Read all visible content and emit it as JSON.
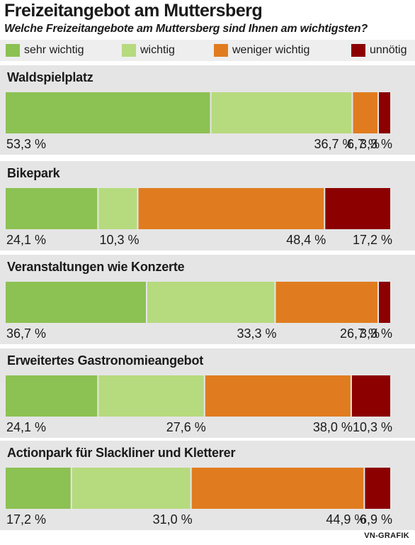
{
  "title": "Freizeitangebot am Muttersberg",
  "subtitle": "Welche Freizeitangebote am Muttersberg sind Ihnen am wichtigsten?",
  "source": "VN-GRAFIK",
  "colors": {
    "sehr_wichtig": "#8cc153",
    "wichtig": "#b6da7e",
    "weniger_wichtig": "#e07c1f",
    "unnoetig": "#8c0000"
  },
  "chart_data": {
    "type": "bar",
    "orientation": "horizontal",
    "stacked": true,
    "normalized": true,
    "legend_position": "top",
    "categories": [
      "Waldspielplatz",
      "Bikepark",
      "Veranstaltungen wie Konzerte",
      "Erweitertes Gastronomieangebot",
      "Actionpark für Slackliner und Kletterer"
    ],
    "series": [
      {
        "name": "sehr wichtig",
        "color": "#8cc153",
        "values": [
          53.3,
          24.1,
          36.7,
          24.1,
          17.2
        ]
      },
      {
        "name": "wichtig",
        "color": "#b6da7e",
        "values": [
          36.7,
          10.3,
          33.3,
          27.6,
          31.0
        ]
      },
      {
        "name": "weniger wichtig",
        "color": "#e07c1f",
        "values": [
          6.7,
          48.4,
          26.7,
          38.0,
          44.9
        ]
      },
      {
        "name": "unnötig",
        "color": "#8c0000",
        "values": [
          3.3,
          17.2,
          3.3,
          10.3,
          6.9
        ]
      }
    ],
    "value_labels": [
      [
        "53,3 %",
        "36,7 %",
        "6,7 %",
        "3,3 %"
      ],
      [
        "24,1 %",
        "10,3 %",
        "48,4 %",
        "17,2 %"
      ],
      [
        "36,7 %",
        "33,3 %",
        "26,7 %",
        "3,3 %"
      ],
      [
        "24,1 %",
        "27,6 %",
        "38,0 %",
        "10,3 %"
      ],
      [
        "17,2 %",
        "31,0 %",
        "44,9 %",
        "6,9 %"
      ]
    ]
  }
}
